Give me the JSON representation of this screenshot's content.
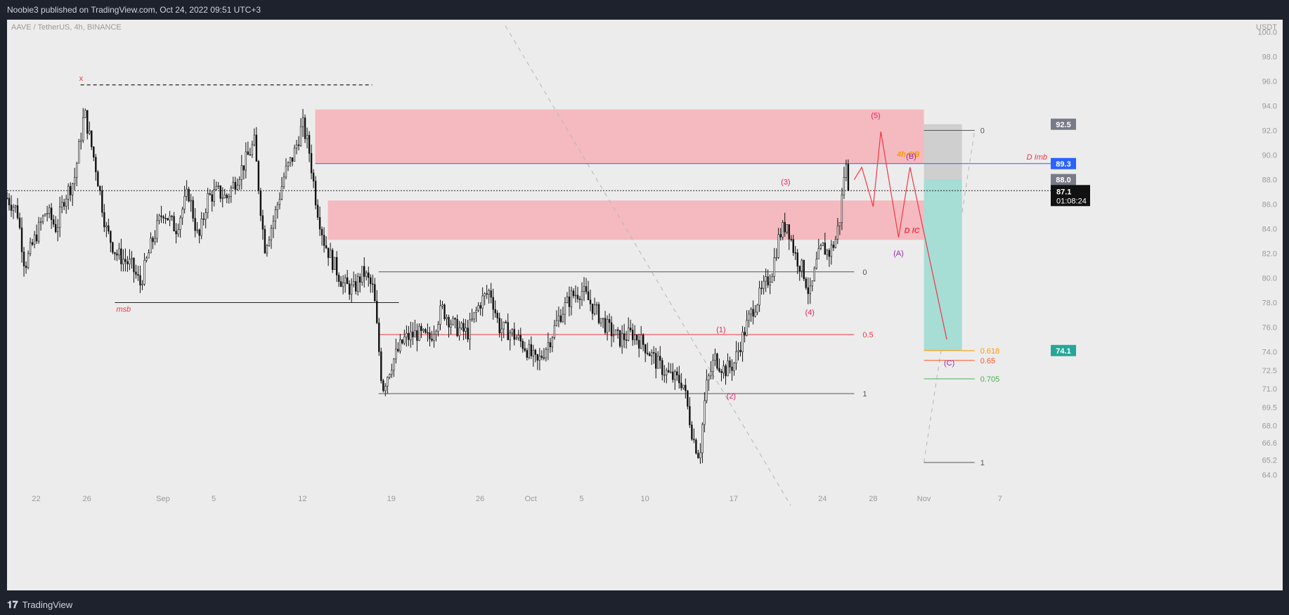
{
  "header": {
    "published_text": "Noobie3 published on TradingView.com, Oct 24, 2022 09:51 UTC+3"
  },
  "footer": {
    "brand": "TradingView",
    "logo_icon": "tradingview-logo-icon"
  },
  "chart_data": {
    "type": "candlestick",
    "title": "AAVE / TetherUS, 4h, BINANCE",
    "currency": "USDT",
    "y_ticks": [
      100.0,
      98.0,
      96.0,
      94.0,
      92.0,
      90.0,
      88.0,
      86.0,
      84.0,
      82.0,
      80.0,
      78.0,
      76.0,
      74.0,
      72.5,
      71.0,
      69.5,
      68.0,
      66.6,
      65.2,
      64.0
    ],
    "y_tick_labels": [
      "100.0",
      "98.0",
      "96.0",
      "94.0",
      "92.0",
      "90.0",
      "88.0",
      "86.0",
      "84.0",
      "82.0",
      "80.0",
      "78.0",
      "76.0",
      "74.0",
      "72.5",
      "71.0",
      "69.5",
      "68.0",
      "66.6",
      "65.2",
      "64.0"
    ],
    "ylim": [
      63.0,
      101.0
    ],
    "x_ticks": [
      {
        "label": "22",
        "day": 0
      },
      {
        "label": "26",
        "day": 4
      },
      {
        "label": "Sep",
        "day": 10
      },
      {
        "label": "5",
        "day": 14
      },
      {
        "label": "12",
        "day": 21
      },
      {
        "label": "19",
        "day": 28
      },
      {
        "label": "26",
        "day": 35
      },
      {
        "label": "Oct",
        "day": 39
      },
      {
        "label": "5",
        "day": 43
      },
      {
        "label": "10",
        "day": 48
      },
      {
        "label": "17",
        "day": 55
      },
      {
        "label": "24",
        "day": 62
      },
      {
        "label": "28",
        "day": 66
      },
      {
        "label": "Nov",
        "day": 70
      },
      {
        "label": "7",
        "day": 76
      }
    ],
    "xlim": [
      -2.3,
      80.0
    ],
    "price_path": [
      {
        "day": -2.3,
        "price": 86.5
      },
      {
        "day": -1.5,
        "price": 85.5
      },
      {
        "day": -0.9,
        "price": 81.0
      },
      {
        "day": 0.0,
        "price": 83.5
      },
      {
        "day": 0.8,
        "price": 85.5
      },
      {
        "day": 1.6,
        "price": 84.0
      },
      {
        "day": 2.2,
        "price": 86.5
      },
      {
        "day": 3.0,
        "price": 88.0
      },
      {
        "day": 3.8,
        "price": 93.5
      },
      {
        "day": 4.7,
        "price": 89.0
      },
      {
        "day": 5.5,
        "price": 84.0
      },
      {
        "day": 6.3,
        "price": 82.0
      },
      {
        "day": 7.5,
        "price": 81.0
      },
      {
        "day": 8.2,
        "price": 79.5
      },
      {
        "day": 9.0,
        "price": 82.5
      },
      {
        "day": 10.0,
        "price": 85.5
      },
      {
        "day": 11.0,
        "price": 84.0
      },
      {
        "day": 12.0,
        "price": 87.0
      },
      {
        "day": 12.8,
        "price": 83.0
      },
      {
        "day": 13.5,
        "price": 86.5
      },
      {
        "day": 14.3,
        "price": 87.0
      },
      {
        "day": 15.0,
        "price": 86.5
      },
      {
        "day": 16.5,
        "price": 89.5
      },
      {
        "day": 17.2,
        "price": 91.0
      },
      {
        "day": 18.0,
        "price": 82.5
      },
      {
        "day": 18.8,
        "price": 85.0
      },
      {
        "day": 19.6,
        "price": 88.5
      },
      {
        "day": 20.3,
        "price": 90.0
      },
      {
        "day": 21.0,
        "price": 92.5
      },
      {
        "day": 21.5,
        "price": 90.5
      },
      {
        "day": 22.1,
        "price": 86.0
      },
      {
        "day": 22.7,
        "price": 83.0
      },
      {
        "day": 23.3,
        "price": 81.5
      },
      {
        "day": 24.2,
        "price": 79.5
      },
      {
        "day": 25.0,
        "price": 79.0
      },
      {
        "day": 25.8,
        "price": 80.5
      },
      {
        "day": 26.6,
        "price": 79.0
      },
      {
        "day": 27.3,
        "price": 71.0
      },
      {
        "day": 28.0,
        "price": 73.0
      },
      {
        "day": 29.0,
        "price": 75.0
      },
      {
        "day": 30.0,
        "price": 75.5
      },
      {
        "day": 31.0,
        "price": 75.0
      },
      {
        "day": 32.0,
        "price": 77.5
      },
      {
        "day": 33.0,
        "price": 76.0
      },
      {
        "day": 34.0,
        "price": 75.5
      },
      {
        "day": 35.0,
        "price": 78.0
      },
      {
        "day": 35.8,
        "price": 79.0
      },
      {
        "day": 36.5,
        "price": 76.0
      },
      {
        "day": 37.5,
        "price": 75.5
      },
      {
        "day": 38.5,
        "price": 74.5
      },
      {
        "day": 39.5,
        "price": 73.0
      },
      {
        "day": 40.5,
        "price": 75.0
      },
      {
        "day": 41.3,
        "price": 77.0
      },
      {
        "day": 42.2,
        "price": 78.5
      },
      {
        "day": 43.0,
        "price": 79.0
      },
      {
        "day": 44.0,
        "price": 77.5
      },
      {
        "day": 45.0,
        "price": 76.0
      },
      {
        "day": 46.0,
        "price": 75.0
      },
      {
        "day": 47.0,
        "price": 75.5
      },
      {
        "day": 48.0,
        "price": 74.5
      },
      {
        "day": 49.0,
        "price": 73.0
      },
      {
        "day": 50.0,
        "price": 72.0
      },
      {
        "day": 51.0,
        "price": 71.5
      },
      {
        "day": 51.8,
        "price": 67.0
      },
      {
        "day": 52.3,
        "price": 65.5
      },
      {
        "day": 52.8,
        "price": 71.0
      },
      {
        "day": 53.5,
        "price": 73.5
      },
      {
        "day": 54.3,
        "price": 72.5
      },
      {
        "day": 55.0,
        "price": 73.0
      },
      {
        "day": 55.8,
        "price": 75.5
      },
      {
        "day": 56.5,
        "price": 77.5
      },
      {
        "day": 57.3,
        "price": 79.0
      },
      {
        "day": 58.0,
        "price": 80.5
      },
      {
        "day": 58.6,
        "price": 83.5
      },
      {
        "day": 59.2,
        "price": 84.5
      },
      {
        "day": 59.8,
        "price": 82.0
      },
      {
        "day": 60.5,
        "price": 80.5
      },
      {
        "day": 61.0,
        "price": 78.5
      },
      {
        "day": 61.6,
        "price": 81.5
      },
      {
        "day": 62.0,
        "price": 82.5
      },
      {
        "day": 62.5,
        "price": 82.0
      },
      {
        "day": 63.0,
        "price": 83.0
      },
      {
        "day": 63.4,
        "price": 85.0
      },
      {
        "day": 63.8,
        "price": 89.5
      },
      {
        "day": 64.1,
        "price": 87.1
      }
    ],
    "price_lines": [
      {
        "label": "D Imb",
        "price": 89.3,
        "color": "#2962ff"
      },
      {
        "label": "",
        "price": 87.1,
        "color": "#222222",
        "style": "dotted"
      }
    ],
    "zones": [
      {
        "label": "4h OB",
        "top": 93.7,
        "bottom": 89.3,
        "day_start": 22.0,
        "day_end": 70.0,
        "color": "#f7a9b0",
        "label_color": "#ff9800"
      },
      {
        "label": "D IC",
        "top": 86.3,
        "bottom": 83.1,
        "day_start": 23.0,
        "day_end": 70.0,
        "color": "#f7a9b0",
        "label_color": "#f23645"
      }
    ],
    "levels": [
      {
        "label": "msb",
        "price": 78.0,
        "day_start": 6.2,
        "day_end": 28.6,
        "color": "#222222",
        "label_color": "#f23645"
      }
    ],
    "swing_high": {
      "label": "x",
      "price": 95.7,
      "day_start": 3.5,
      "day_end": 26.5
    },
    "fib_left": {
      "day_start": 27.0,
      "day_end": 64.5,
      "levels": [
        {
          "label": "0",
          "price": 80.5,
          "color": "#555555"
        },
        {
          "label": "0.5",
          "price": 75.4,
          "color": "#f23645"
        },
        {
          "label": "1",
          "price": 70.6,
          "color": "#555555"
        }
      ]
    },
    "fib_right": {
      "day_start": 70.0,
      "day_end": 74.0,
      "levels": [
        {
          "label": "0",
          "price": 92.0,
          "color": "#555555"
        },
        {
          "label": "0.618",
          "price": 74.1,
          "color": "#ff9800"
        },
        {
          "label": "0.65",
          "price": 73.3,
          "color": "#ff5722"
        },
        {
          "label": "0.705",
          "price": 71.8,
          "color": "#4caf50"
        },
        {
          "label": "1",
          "price": 65.0,
          "color": "#555555"
        }
      ]
    },
    "position_tool": {
      "day_start": 70.0,
      "day_end": 73.0,
      "entry": 88.0,
      "stop": 92.5,
      "target": 74.1
    },
    "wave_labels": [
      {
        "label": "(1)",
        "day": 54.0,
        "price": 75.6,
        "color": "#e91e63"
      },
      {
        "label": "(2)",
        "day": 54.8,
        "price": 70.2,
        "color": "#e91e63"
      },
      {
        "label": "(3)",
        "day": 59.1,
        "price": 87.6,
        "color": "#e91e63"
      },
      {
        "label": "(4)",
        "day": 61.0,
        "price": 77.0,
        "color": "#e91e63"
      },
      {
        "label": "(5)",
        "day": 66.2,
        "price": 93.0,
        "color": "#e91e63"
      },
      {
        "label": "(A)",
        "day": 68.0,
        "price": 81.8,
        "color": "#9c27b0"
      },
      {
        "label": "(B)",
        "day": 69.0,
        "price": 89.7,
        "color": "#9c27b0"
      },
      {
        "label": "(C)",
        "day": 72.0,
        "price": 72.9,
        "color": "#9c27b0"
      }
    ],
    "projection_path": [
      {
        "day": 64.5,
        "price": 88.0
      },
      {
        "day": 65.1,
        "price": 89.0
      },
      {
        "day": 66.0,
        "price": 85.8
      },
      {
        "day": 66.6,
        "price": 91.9
      },
      {
        "day": 68.0,
        "price": 83.3
      },
      {
        "day": 68.9,
        "price": 89.0
      },
      {
        "day": 71.8,
        "price": 75.0
      }
    ],
    "trendline": [
      {
        "day": 37.0,
        "price": 100.5
      },
      {
        "day": 59.5,
        "price": 61.5
      }
    ],
    "trendline2": [
      {
        "day": 70.0,
        "price": 65.0
      },
      {
        "day": 74.0,
        "price": 92.0
      }
    ],
    "price_badges": [
      {
        "value": "92.5",
        "price": 92.5,
        "bg": "#787b86",
        "fg": "#ffffff"
      },
      {
        "value": "89.3",
        "price": 89.3,
        "bg": "#2962ff",
        "fg": "#ffffff"
      },
      {
        "value": "88.0",
        "price": 88.0,
        "bg": "#787b86",
        "fg": "#ffffff"
      },
      {
        "value": "74.1",
        "price": 74.1,
        "bg": "#26a69a",
        "fg": "#ffffff"
      }
    ],
    "last_price": {
      "value": "87.1",
      "countdown": "01:08:24",
      "price": 87.1
    }
  }
}
